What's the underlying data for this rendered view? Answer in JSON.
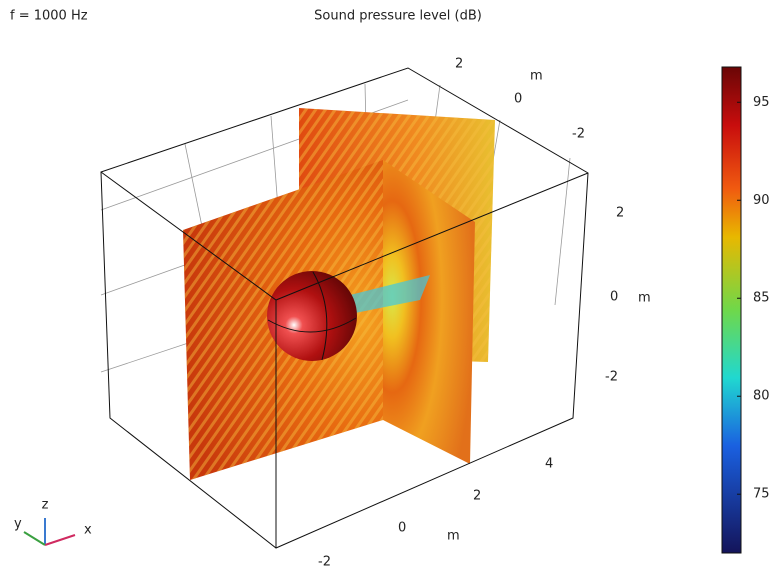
{
  "header": {
    "frequency": "f = 1000 Hz",
    "title": "Sound pressure level (dB)"
  },
  "axes": {
    "x": {
      "ticks": [
        -2,
        0,
        2,
        4
      ],
      "unit": "m"
    },
    "y": {
      "ticks": [
        2,
        0,
        -2
      ],
      "unit": "m"
    },
    "z": {
      "ticks": [
        2,
        0,
        -2
      ],
      "unit": "m"
    }
  },
  "colorbar": {
    "range": [
      72,
      96.8
    ],
    "ticks": [
      75,
      80,
      85,
      90,
      95
    ]
  },
  "triad": {
    "x": "x",
    "y": "y",
    "z": "z"
  }
}
